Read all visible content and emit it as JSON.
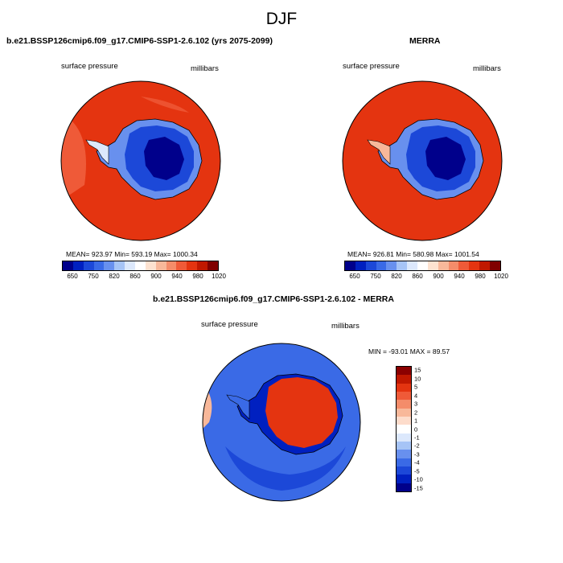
{
  "season": "DJF",
  "panels": [
    {
      "title": "b.e21.BSSP126cmip6.f09_g17.CMIP6-SSP1-2.6.102 (yrs 2075-2099)",
      "variable": "surface pressure",
      "units": "millibars",
      "stats": "MEAN= 923.97   Min= 593.19  Max= 1000.34"
    },
    {
      "title": "MERRA",
      "variable": "surface pressure",
      "units": "millibars",
      "stats": "MEAN= 926.81   Min= 580.98  Max= 1001.54"
    }
  ],
  "absolute_colorbar": {
    "colors": [
      "#00008b",
      "#0020c0",
      "#1c48d8",
      "#3a6ae6",
      "#6890ee",
      "#a6c4f6",
      "#dce8fc",
      "#ffffff",
      "#fde2d0",
      "#f8b89a",
      "#f48c6a",
      "#ef5a38",
      "#e43410",
      "#c01800",
      "#800000"
    ],
    "labels": [
      "650",
      "750",
      "820",
      "860",
      "900",
      "940",
      "980",
      "1020"
    ]
  },
  "difference_panel": {
    "title": "b.e21.BSSP126cmip6.f09_g17.CMIP6-SSP1-2.6.102 - MERRA",
    "variable": "surface pressure",
    "units": "millibars",
    "minmax": "MIN = -93.01  MAX =  89.57"
  },
  "difference_colorbar": {
    "colors": [
      "#8b0000",
      "#c01800",
      "#e43410",
      "#ef5a38",
      "#f48c6a",
      "#f8b89a",
      "#fddccb",
      "#ffffff",
      "#dce8fc",
      "#a6c4f6",
      "#6890ee",
      "#3a6ae6",
      "#1c48d8",
      "#0020c0",
      "#00008b"
    ],
    "labels": [
      "15",
      "10",
      "5",
      "4",
      "3",
      "2",
      "1",
      "0",
      "-1",
      "-2",
      "-3",
      "-4",
      "-5",
      "-10",
      "-15"
    ]
  },
  "map_colors": {
    "ocean_high": "#e43410",
    "ocean_alt": "#ef5a38",
    "interior_low": "#00008b",
    "mid": "#1c48d8",
    "coast": "#6890ee",
    "diff_ocean": "#3a6ae6",
    "diff_land": "#e43410"
  }
}
